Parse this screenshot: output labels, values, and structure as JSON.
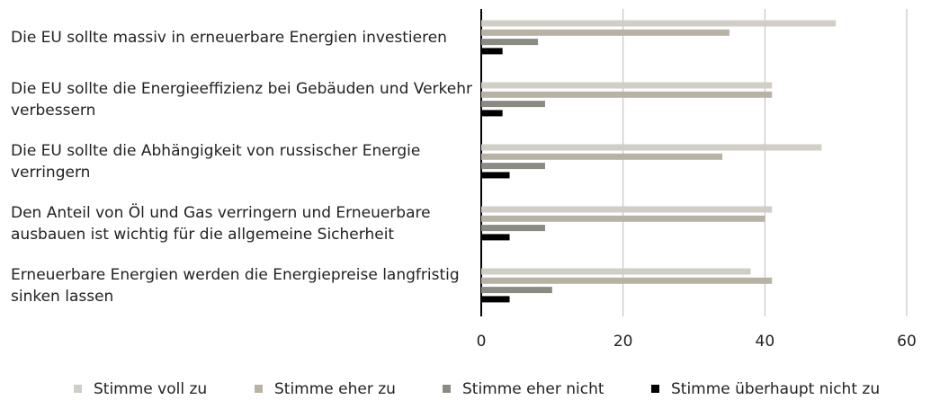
{
  "chart_data": {
    "type": "bar",
    "orientation": "horizontal",
    "categories": [
      "Die EU sollte massiv in erneuerbare Energien investieren",
      "Die EU sollte die Energieeffizienz bei Gebäuden und Verkehr verbessern",
      "Die EU sollte die Abhängigkeit von russischer Energie verringern",
      "Den Anteil von Öl und Gas verringern und Erneuerbare ausbauen ist wichtig für die allgemeine Sicherheit",
      "Erneuerbare Energien werden die Energiepreise langfristig sinken lassen"
    ],
    "series": [
      {
        "name": "Stimme voll zu",
        "color": "#d0cec6",
        "values": [
          50,
          41,
          48,
          41,
          38
        ]
      },
      {
        "name": "Stimme eher zu",
        "color": "#b8b2a4",
        "values": [
          35,
          41,
          34,
          40,
          41
        ]
      },
      {
        "name": "Stimme eher nicht",
        "color": "#8b8b83",
        "values": [
          8,
          9,
          9,
          9,
          10
        ]
      },
      {
        "name": "Stimme überhaupt nicht zu",
        "color": "#000000",
        "values": [
          3,
          3,
          4,
          4,
          4
        ]
      }
    ],
    "xlim": [
      0,
      60
    ],
    "xticks": [
      0,
      20,
      40,
      60
    ],
    "grid": true,
    "legend": "bottom"
  }
}
